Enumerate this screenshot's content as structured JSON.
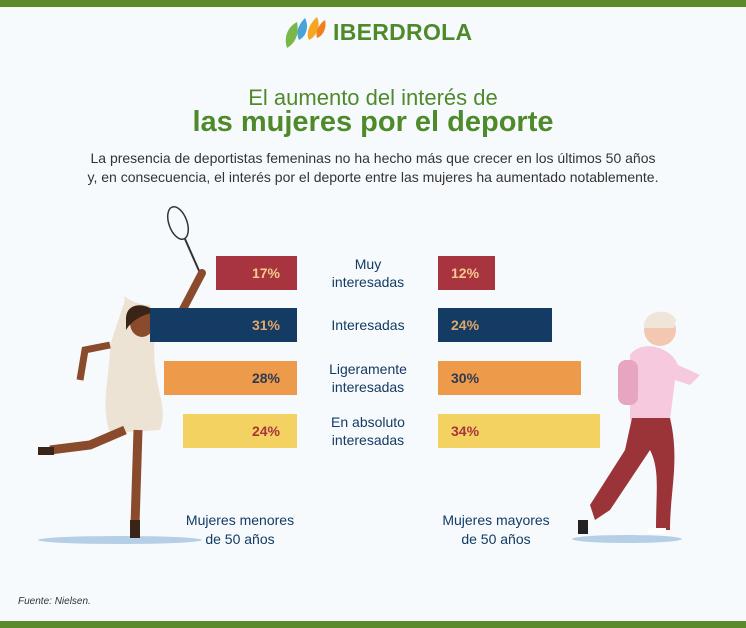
{
  "logo": {
    "text": "IBERDROLA"
  },
  "title_line1": "El aumento del interés de",
  "title_line2": "las mujeres por el deporte",
  "subtitle_line1": "La presencia de deportistas femeninas no ha hecho más que crecer en los últimos 50 años",
  "subtitle_line2": "y, en consecuencia, el interés por el deporte entre las mujeres ha aumentado notablemente.",
  "source": "Fuente: Nielsen.",
  "chart_data": {
    "type": "bar",
    "orientation": "horizontal-butterfly",
    "categories": [
      "Muy interesadas",
      "Interesadas",
      "Ligeramente interesadas",
      "En absoluto interesadas"
    ],
    "category_lines": [
      [
        "Muy",
        "interesadas"
      ],
      [
        "Interesadas"
      ],
      [
        "Ligeramente",
        "interesadas"
      ],
      [
        "En absoluto",
        "interesadas"
      ]
    ],
    "series": [
      {
        "name": "Mujeres menores de 50 años",
        "name_lines": [
          "Mujeres menores",
          "de 50 años"
        ],
        "values": [
          17,
          31,
          28,
          24
        ],
        "labels": [
          "17%",
          "31%",
          "28%",
          "24%"
        ]
      },
      {
        "name": "Mujeres mayores de 50 años",
        "name_lines": [
          "Mujeres mayores",
          "de 50 años"
        ],
        "values": [
          12,
          24,
          30,
          34
        ],
        "labels": [
          "12%",
          "24%",
          "30%",
          "34%"
        ]
      }
    ],
    "colors": [
      "#a8343f",
      "#133b63",
      "#ee9a4b",
      "#f3d262"
    ],
    "label_colors": [
      "#f7c98a",
      "#e0a86a",
      "#2e3a4f",
      "#a8343f"
    ],
    "unit": "%"
  }
}
